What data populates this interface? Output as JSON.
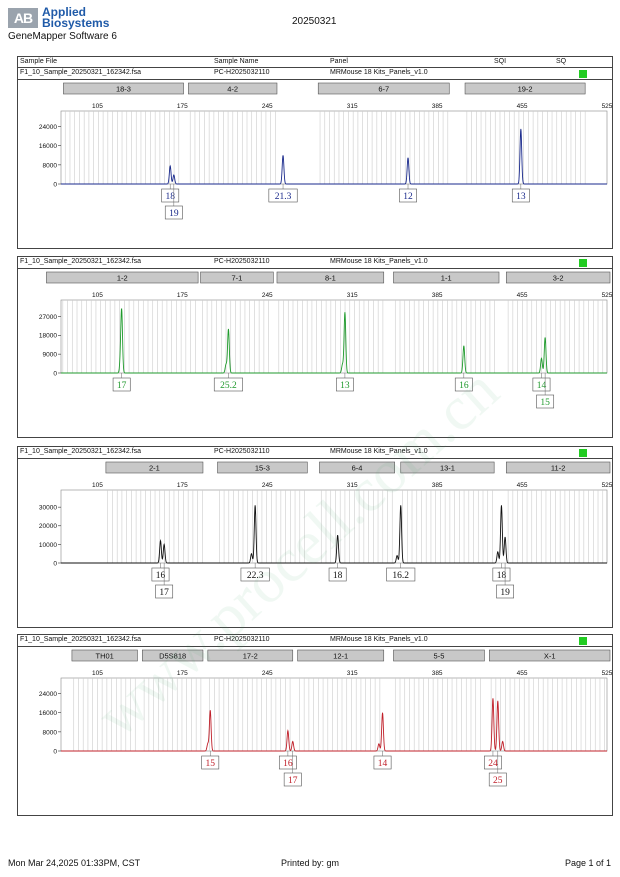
{
  "brand": {
    "logo_mark": "AB",
    "line1": "Applied",
    "line2": "Biosystems"
  },
  "app_name": "GeneMapper Software 6",
  "report_title": "20250321",
  "columns": {
    "sample_file": "Sample File",
    "sample_name": "Sample Name",
    "panel": "Panel",
    "sqi": "SQI",
    "sq": "SQ"
  },
  "footer": {
    "date": "Mon Mar 24,2025 01:33PM, CST",
    "printed_by": "Printed by: gm",
    "page": "Page 1 of 1"
  },
  "watermark": "www.procell.com.cn",
  "chart_data": [
    {
      "type": "line",
      "sample_file": "F1_10_Sample_20250321_162342.fsa",
      "sample_name": "PC-H2025032110",
      "panel": "MRMouse 18 Kits_Panels_v1.0",
      "color": "#1a2a8c",
      "xlim": [
        75,
        525
      ],
      "x_ticks": [
        105,
        175,
        245,
        315,
        385,
        455,
        525
      ],
      "ylim": [
        0,
        28000
      ],
      "y_ticks": [
        0,
        8000,
        16000,
        24000
      ],
      "markers": [
        {
          "label": "18-3",
          "range": [
            77,
            176
          ]
        },
        {
          "label": "4-2",
          "range": [
            180,
            253
          ]
        },
        {
          "label": "6-7",
          "range": [
            287,
            395
          ]
        },
        {
          "label": "19-2",
          "range": [
            408,
            507
          ]
        }
      ],
      "peaks": [
        {
          "x": 165,
          "y": 7500
        },
        {
          "x": 168,
          "y": 3800
        },
        {
          "x": 258,
          "y": 12000
        },
        {
          "x": 361,
          "y": 11000
        },
        {
          "x": 454,
          "y": 23000
        }
      ],
      "calls": [
        {
          "label": "18",
          "x": 165,
          "row": 0
        },
        {
          "label": "19",
          "x": 168,
          "row": 1
        },
        {
          "label": "21.3",
          "x": 258,
          "row": 0
        },
        {
          "label": "12",
          "x": 361,
          "row": 0
        },
        {
          "label": "13",
          "x": 454,
          "row": 0
        }
      ]
    },
    {
      "type": "line",
      "sample_file": "F1_10_Sample_20250321_162342.fsa",
      "sample_name": "PC-H2025032110",
      "panel": "MRMouse 18 Kits_Panels_v1.0",
      "color": "#1f9a2c",
      "xlim": [
        75,
        525
      ],
      "x_ticks": [
        105,
        175,
        245,
        315,
        385,
        455,
        525
      ],
      "ylim": [
        0,
        32000
      ],
      "y_ticks": [
        0,
        9000,
        18000,
        27000
      ],
      "markers": [
        {
          "label": "1-2",
          "range": [
            63,
            188
          ]
        },
        {
          "label": "7-1",
          "range": [
            190,
            250
          ]
        },
        {
          "label": "8-1",
          "range": [
            253,
            341
          ]
        },
        {
          "label": "1-1",
          "range": [
            349,
            436
          ]
        },
        {
          "label": "3-2",
          "range": [
            442,
            555
          ]
        }
      ],
      "peaks": [
        {
          "x": 125,
          "y": 29000
        },
        {
          "x": 124,
          "y": 5000
        },
        {
          "x": 213,
          "y": 21000
        },
        {
          "x": 211,
          "y": 4000
        },
        {
          "x": 309,
          "y": 29000
        },
        {
          "x": 307,
          "y": 4000
        },
        {
          "x": 407,
          "y": 13000
        },
        {
          "x": 471,
          "y": 7000
        },
        {
          "x": 474,
          "y": 17000
        }
      ],
      "calls": [
        {
          "label": "17",
          "x": 125,
          "row": 0
        },
        {
          "label": "25.2",
          "x": 213,
          "row": 0
        },
        {
          "label": "13",
          "x": 309,
          "row": 0
        },
        {
          "label": "16",
          "x": 407,
          "row": 0
        },
        {
          "label": "14",
          "x": 471,
          "row": 0
        },
        {
          "label": "15",
          "x": 474,
          "row": 1
        }
      ]
    },
    {
      "type": "line",
      "sample_file": "F1_10_Sample_20250321_162342.fsa",
      "sample_name": "PC-H2025032110",
      "panel": "MRMouse 18 Kits_Panels_v1.0",
      "color": "#111111",
      "xlim": [
        75,
        525
      ],
      "x_ticks": [
        105,
        175,
        245,
        315,
        385,
        455,
        525
      ],
      "ylim": [
        0,
        36000
      ],
      "y_ticks": [
        0,
        10000,
        20000,
        30000
      ],
      "markers": [
        {
          "label": "2-1",
          "range": [
            112,
            192
          ]
        },
        {
          "label": "15-3",
          "range": [
            204,
            278
          ]
        },
        {
          "label": "6-4",
          "range": [
            288,
            350
          ]
        },
        {
          "label": "13-1",
          "range": [
            355,
            432
          ]
        },
        {
          "label": "11-2",
          "range": [
            442,
            574
          ]
        }
      ],
      "peaks": [
        {
          "x": 157,
          "y": 12000
        },
        {
          "x": 160,
          "y": 10000
        },
        {
          "x": 232,
          "y": 5000
        },
        {
          "x": 235,
          "y": 31000
        },
        {
          "x": 303,
          "y": 15000
        },
        {
          "x": 352,
          "y": 4000
        },
        {
          "x": 355,
          "y": 31000
        },
        {
          "x": 435,
          "y": 6000
        },
        {
          "x": 438,
          "y": 31000
        },
        {
          "x": 441,
          "y": 14000
        }
      ],
      "calls": [
        {
          "label": "16",
          "x": 157,
          "row": 0
        },
        {
          "label": "17",
          "x": 160,
          "row": 1
        },
        {
          "label": "22.3",
          "x": 235,
          "row": 0
        },
        {
          "label": "18",
          "x": 303,
          "row": 0
        },
        {
          "label": "16.2",
          "x": 355,
          "row": 0
        },
        {
          "label": "18",
          "x": 438,
          "row": 0
        },
        {
          "label": "19",
          "x": 441,
          "row": 1
        }
      ]
    },
    {
      "type": "line",
      "sample_file": "F1_10_Sample_20250321_162342.fsa",
      "sample_name": "PC-H2025032110",
      "panel": "MRMouse 18 Kits_Panels_v1.0",
      "color": "#c0202a",
      "xlim": [
        75,
        525
      ],
      "x_ticks": [
        105,
        175,
        245,
        315,
        385,
        455,
        525
      ],
      "ylim": [
        0,
        28000
      ],
      "y_ticks": [
        0,
        8000,
        16000,
        24000
      ],
      "markers": [
        {
          "label": "TH01",
          "range": [
            84,
            138
          ]
        },
        {
          "label": "D5S818",
          "range": [
            142,
            192
          ]
        },
        {
          "label": "17-2",
          "range": [
            196,
            266
          ]
        },
        {
          "label": "12-1",
          "range": [
            270,
            341
          ]
        },
        {
          "label": "5-5",
          "range": [
            349,
            424
          ]
        },
        {
          "label": "X-1",
          "range": [
            428,
            551
          ]
        }
      ],
      "peaks": [
        {
          "x": 198,
          "y": 17000
        },
        {
          "x": 196,
          "y": 3000
        },
        {
          "x": 262,
          "y": 8500
        },
        {
          "x": 266,
          "y": 4000
        },
        {
          "x": 340,
          "y": 16000
        },
        {
          "x": 337,
          "y": 3000
        },
        {
          "x": 431,
          "y": 22000
        },
        {
          "x": 435,
          "y": 21000
        },
        {
          "x": 439,
          "y": 4000
        }
      ],
      "calls": [
        {
          "label": "15",
          "x": 198,
          "row": 0
        },
        {
          "label": "16",
          "x": 262,
          "row": 0
        },
        {
          "label": "17",
          "x": 266,
          "row": 1
        },
        {
          "label": "14",
          "x": 340,
          "row": 0
        },
        {
          "label": "24",
          "x": 431,
          "row": 0
        },
        {
          "label": "25",
          "x": 435,
          "row": 1
        }
      ]
    }
  ]
}
